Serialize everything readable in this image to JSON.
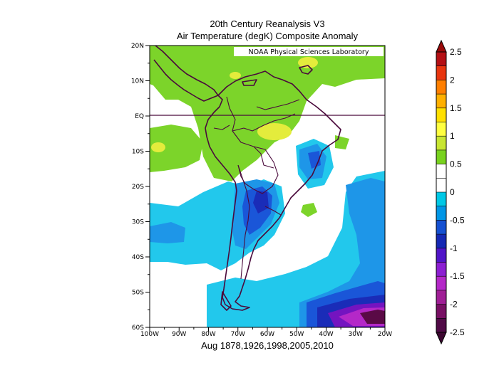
{
  "title_line1": "20th Century Reanalysis V3",
  "title_line2": "Air Temperature (degK) Composite Anomaly",
  "caption": "Aug 1878,1926,1998,2005,2010",
  "map_label": "NOAA Physical Sciences Laboratory",
  "latitude_ticks": [
    "20N",
    "10N",
    "EQ",
    "10S",
    "20S",
    "30S",
    "40S",
    "50S",
    "60S"
  ],
  "longitude_ticks": [
    "100W",
    "90W",
    "80W",
    "70W",
    "60W",
    "50W",
    "40W",
    "30W",
    "20W"
  ],
  "colorbar": {
    "labels": [
      "2.5",
      "2",
      "1.5",
      "1",
      "0.5",
      "0",
      "-0.5",
      "-1",
      "-1.5",
      "-2",
      "-2.5"
    ],
    "colors": [
      "#b40f14",
      "#e8350f",
      "#ff7f00",
      "#ffb000",
      "#ffe000",
      "#ffff40",
      "#c8e632",
      "#78d21e",
      "#ffffff",
      "#ffffff",
      "#00c8e6",
      "#0096e6",
      "#1450d2",
      "#1428b4",
      "#5014c8",
      "#8c1ed2",
      "#b428c8",
      "#a01e96",
      "#780f64",
      "#500a46"
    ]
  },
  "map_colors": {
    "land_outline": "#4a0a3c",
    "green_light": "#7cd42a",
    "green_dark": "#5cc418",
    "yellow": "#e4ec3c",
    "cyan": "#22c8ec",
    "light_blue": "#1e96e8",
    "blue": "#1a56d8",
    "dark_blue": "#1a2cb8",
    "purple": "#7414c0",
    "magenta": "#b428c8",
    "dark_purple": "#5a0a46"
  }
}
